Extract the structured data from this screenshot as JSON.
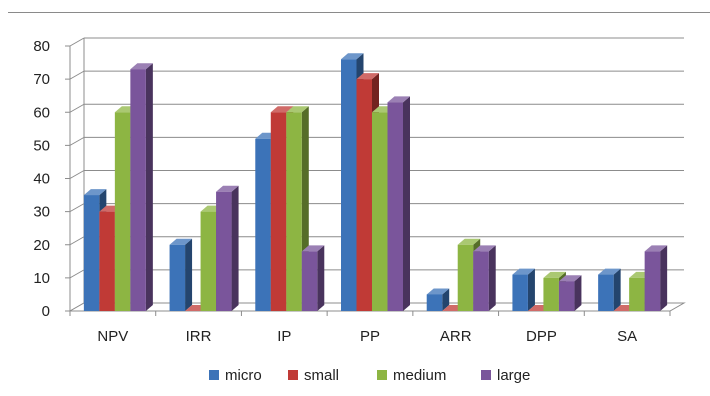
{
  "chart_data": {
    "type": "bar",
    "categories": [
      "NPV",
      "IRR",
      "IP",
      "PP",
      "ARR",
      "DPP",
      "SA"
    ],
    "series": [
      {
        "name": "micro",
        "color": "#3c73b8",
        "values": [
          35,
          20,
          52,
          76,
          5,
          11,
          11
        ]
      },
      {
        "name": "small",
        "color": "#c03a36",
        "values": [
          30,
          0,
          60,
          70,
          0,
          0,
          0
        ]
      },
      {
        "name": "medium",
        "color": "#8db543",
        "values": [
          60,
          30,
          60,
          60,
          20,
          10,
          10
        ]
      },
      {
        "name": "large",
        "color": "#7a559b",
        "values": [
          73,
          36,
          18,
          63,
          18,
          9,
          18
        ]
      }
    ],
    "yticks": [
      "0",
      "10",
      "20",
      "30",
      "40",
      "50",
      "60",
      "70",
      "80"
    ],
    "ylim": [
      0,
      80
    ],
    "grid": true,
    "legend_position": "bottom",
    "xlabel": "",
    "ylabel": "",
    "title": ""
  }
}
